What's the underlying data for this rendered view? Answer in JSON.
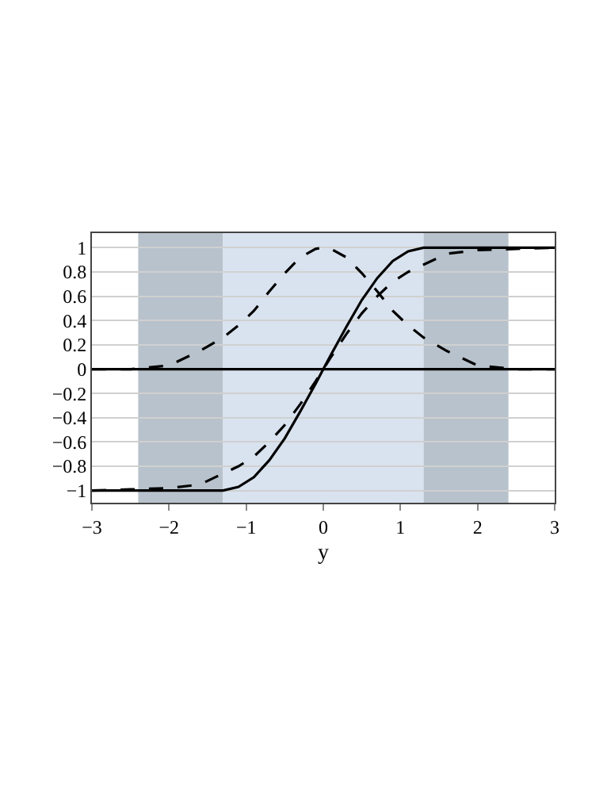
{
  "chart_data": {
    "type": "line",
    "xlabel": "y",
    "x": [
      -3,
      -2.5,
      -2,
      -1.6,
      -1.3,
      -1.1,
      -0.9,
      -0.7,
      -0.5,
      -0.3,
      -0.1,
      0,
      0.1,
      0.3,
      0.5,
      0.7,
      0.9,
      1.1,
      1.3,
      1.6,
      2,
      2.5,
      3
    ],
    "series": [
      {
        "color": "#000000",
        "line_style": "solid",
        "values": [
          -1,
          -1,
          -1,
          -1,
          -1,
          -0.97,
          -0.89,
          -0.75,
          -0.57,
          -0.35,
          -0.12,
          0,
          0.12,
          0.35,
          0.57,
          0.75,
          0.89,
          0.97,
          1,
          1,
          1,
          1,
          1
        ]
      },
      {
        "color": "#000000",
        "line_style": "dashed",
        "values": [
          -1,
          -0.99,
          -0.98,
          -0.95,
          -0.86,
          -0.8,
          -0.72,
          -0.6,
          -0.46,
          -0.29,
          -0.1,
          0,
          0.1,
          0.29,
          0.46,
          0.6,
          0.72,
          0.8,
          0.86,
          0.95,
          0.98,
          0.99,
          1
        ]
      },
      {
        "color": "#000000",
        "line_style": "dashed",
        "values": [
          0,
          0,
          0.03,
          0.15,
          0.26,
          0.36,
          0.48,
          0.64,
          0.79,
          0.92,
          0.99,
          1,
          0.99,
          0.92,
          0.79,
          0.64,
          0.48,
          0.36,
          0.26,
          0.15,
          0.03,
          0,
          0
        ]
      }
    ],
    "xlim": [
      -3,
      3
    ],
    "xticks": [
      -3,
      -2,
      -1,
      0,
      1,
      2,
      3
    ],
    "ylim": [
      -1.1,
      1.12
    ],
    "yticks": [
      -1,
      -0.8,
      -0.6,
      -0.4,
      -0.2,
      0,
      0.2,
      0.4,
      0.6,
      0.8,
      1
    ],
    "grid": "y",
    "marker": "none",
    "ref_lines": [
      {
        "axis": "y",
        "value": 0,
        "color": "#000000",
        "line_style": "solid"
      }
    ],
    "bands": [
      {
        "axis": "x",
        "from": -2.4,
        "to": -1.3,
        "color": "#b8c2cc"
      },
      {
        "axis": "x",
        "from": -1.3,
        "to": 1.3,
        "color": "#d9e3ef"
      },
      {
        "axis": "x",
        "from": 1.3,
        "to": 2.4,
        "color": "#b8c2cc"
      }
    ]
  }
}
